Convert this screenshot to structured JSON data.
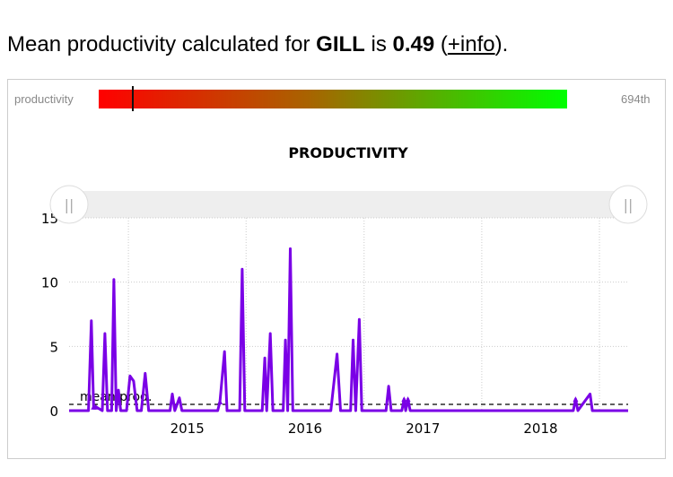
{
  "headline": {
    "prefix": "Mean productivity calculated for ",
    "name": "GILL",
    "middle": " is ",
    "value": "0.49",
    "open": " (",
    "link": "+info",
    "close": ")."
  },
  "rank_bar": {
    "label": "productivity",
    "rank": "694th",
    "marker_fraction": 0.07,
    "colors": [
      "#ff0000",
      "#00ff00"
    ]
  },
  "chart_data": {
    "type": "line",
    "title": "PRODUCTIVITY",
    "xlabel": "",
    "ylabel": "",
    "ylim": [
      0,
      15
    ],
    "yticks": [
      0,
      5,
      10,
      15
    ],
    "xlim": [
      "2014-07-01",
      "2019-03-31"
    ],
    "xticks": [
      "2015",
      "2016",
      "2017",
      "2018"
    ],
    "grid": true,
    "line_color": "#7a00e6",
    "mean": {
      "value": 0.49,
      "label": "mean prod."
    },
    "points": [
      [
        "2014-07-01",
        0
      ],
      [
        "2014-08-30",
        0
      ],
      [
        "2014-09-08",
        7.0
      ],
      [
        "2014-09-15",
        0.3
      ],
      [
        "2014-09-22",
        0.3
      ],
      [
        "2014-10-12",
        0
      ],
      [
        "2014-10-20",
        6.0
      ],
      [
        "2014-10-28",
        0
      ],
      [
        "2014-11-10",
        0
      ],
      [
        "2014-11-17",
        10.2
      ],
      [
        "2014-11-24",
        0
      ],
      [
        "2014-12-01",
        1.6
      ],
      [
        "2014-12-08",
        0
      ],
      [
        "2014-12-26",
        0
      ],
      [
        "2015-01-06",
        2.7
      ],
      [
        "2015-01-17",
        2.3
      ],
      [
        "2015-01-28",
        0
      ],
      [
        "2015-02-10",
        0
      ],
      [
        "2015-02-22",
        2.9
      ],
      [
        "2015-03-05",
        0
      ],
      [
        "2015-05-10",
        0
      ],
      [
        "2015-05-17",
        1.3
      ],
      [
        "2015-05-25",
        0
      ],
      [
        "2015-06-08",
        1.0
      ],
      [
        "2015-06-16",
        0
      ],
      [
        "2015-10-05",
        0
      ],
      [
        "2015-10-12",
        0.7
      ],
      [
        "2015-10-26",
        4.6
      ],
      [
        "2015-11-03",
        0
      ],
      [
        "2015-12-12",
        0
      ],
      [
        "2015-12-20",
        11.0
      ],
      [
        "2015-12-28",
        0
      ],
      [
        "2016-02-20",
        0
      ],
      [
        "2016-02-28",
        4.1
      ],
      [
        "2016-03-05",
        0
      ],
      [
        "2016-03-16",
        6.0
      ],
      [
        "2016-03-24",
        0
      ],
      [
        "2016-04-25",
        0
      ],
      [
        "2016-05-02",
        5.5
      ],
      [
        "2016-05-09",
        0
      ],
      [
        "2016-05-17",
        12.6
      ],
      [
        "2016-05-25",
        0
      ],
      [
        "2016-09-20",
        0
      ],
      [
        "2016-10-09",
        4.4
      ],
      [
        "2016-10-20",
        0
      ],
      [
        "2016-11-20",
        0
      ],
      [
        "2016-11-28",
        5.5
      ],
      [
        "2016-12-06",
        0
      ],
      [
        "2016-12-17",
        7.1
      ],
      [
        "2016-12-25",
        0
      ],
      [
        "2017-03-10",
        0
      ],
      [
        "2017-03-18",
        1.9
      ],
      [
        "2017-03-26",
        0
      ],
      [
        "2017-04-28",
        0
      ],
      [
        "2017-05-05",
        0.9
      ],
      [
        "2017-05-10",
        0
      ],
      [
        "2017-05-17",
        0.9
      ],
      [
        "2017-05-24",
        0
      ],
      [
        "2018-10-12",
        0
      ],
      [
        "2018-10-19",
        0.9
      ],
      [
        "2018-10-26",
        0
      ],
      [
        "2018-12-03",
        1.3
      ],
      [
        "2018-12-10",
        0
      ],
      [
        "2019-03-31",
        0
      ]
    ]
  }
}
